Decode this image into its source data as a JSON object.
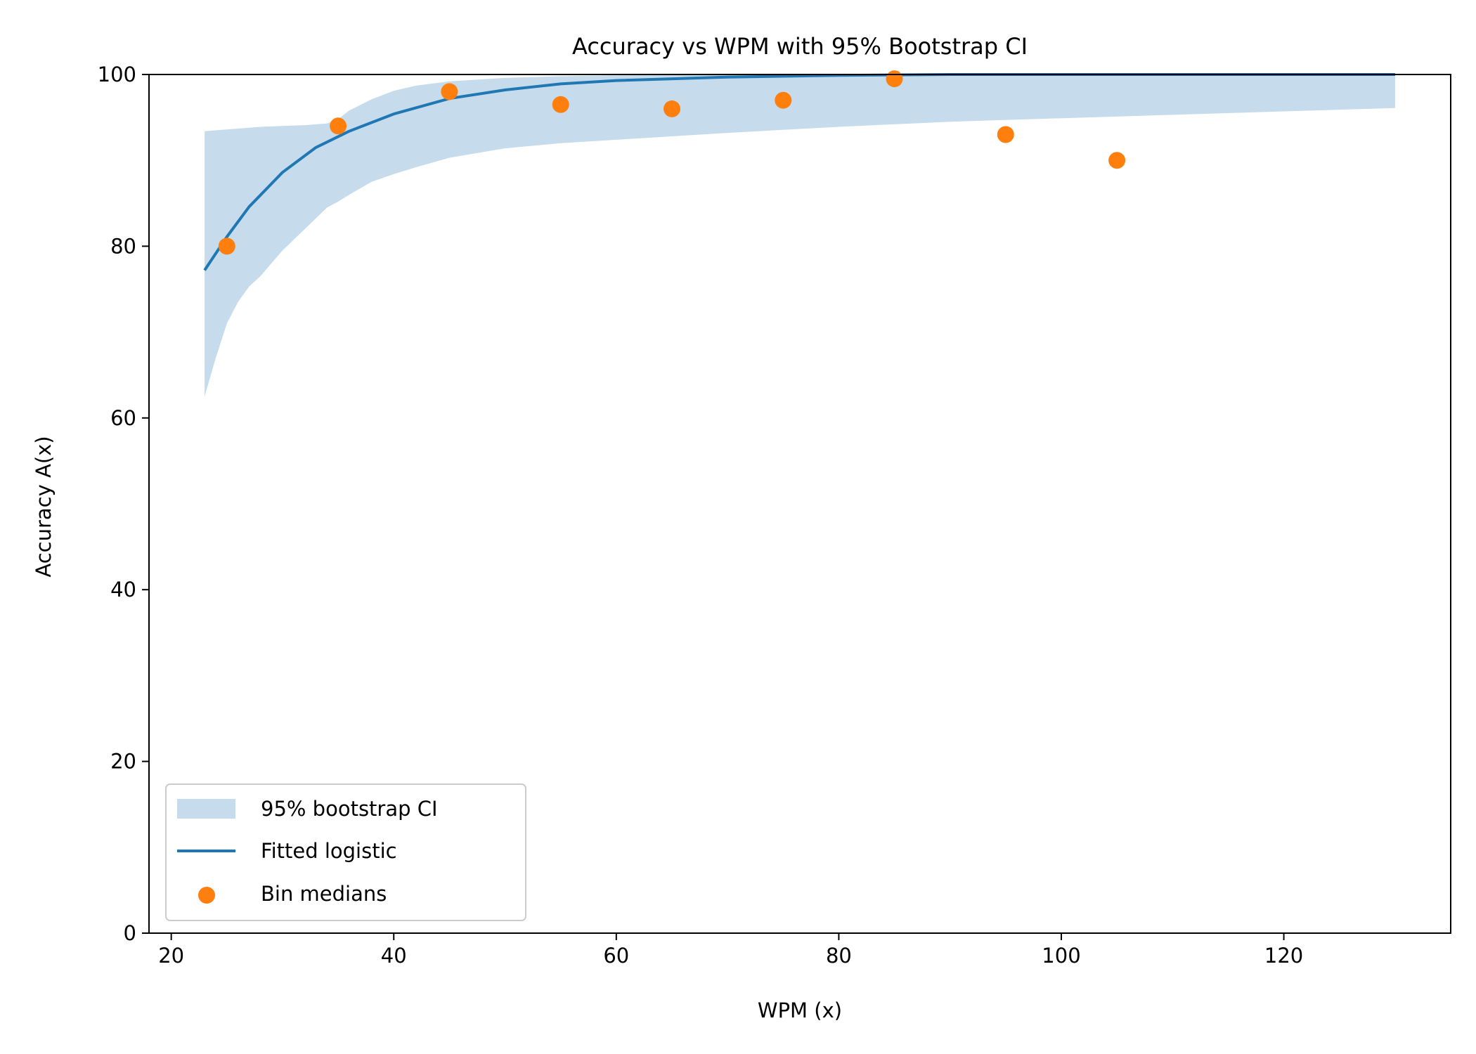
{
  "chart_data": {
    "type": "line",
    "title": "Accuracy vs WPM with 95% Bootstrap CI",
    "xlabel": "WPM (x)",
    "ylabel": "Accuracy A(x)",
    "xlim": [
      18,
      135
    ],
    "ylim": [
      0,
      100
    ],
    "x_ticks": [
      20,
      40,
      60,
      80,
      100,
      120
    ],
    "y_ticks": [
      0,
      20,
      40,
      60,
      80,
      100
    ],
    "grid": false,
    "legend_position": "lower-left",
    "colors": {
      "ci_band": "#c6dbeb",
      "fit_line": "#1f77b4",
      "points": "#ff7f0e"
    },
    "series": [
      {
        "name": "95% bootstrap CI",
        "kind": "band",
        "x": [
          23,
          24,
          25,
          26,
          27,
          28,
          30,
          32,
          34,
          35,
          36,
          38,
          40,
          42,
          45,
          50,
          55,
          60,
          70,
          80,
          90,
          100,
          110,
          120,
          130
        ],
        "lower": [
          62.5,
          67,
          71,
          73.5,
          75.3,
          76.5,
          79.5,
          82,
          84.5,
          85.2,
          86,
          87.5,
          88.4,
          89.2,
          90.3,
          91.4,
          92,
          92.4,
          93.2,
          93.9,
          94.5,
          94.9,
          95.3,
          95.7,
          96.1
        ],
        "upper": [
          93.4,
          93.5,
          93.6,
          93.7,
          93.8,
          93.9,
          94,
          94.1,
          94.3,
          94.8,
          95.8,
          97.1,
          98.1,
          98.7,
          99.2,
          99.6,
          99.8,
          99.9,
          100,
          100,
          100,
          100,
          100,
          100,
          100
        ]
      },
      {
        "name": "Fitted logistic",
        "kind": "line",
        "x": [
          23,
          25,
          27,
          30,
          33,
          36,
          40,
          45,
          50,
          55,
          60,
          70,
          80,
          90,
          100,
          110,
          120,
          130
        ],
        "y": [
          77.2,
          81.1,
          84.6,
          88.6,
          91.5,
          93.4,
          95.4,
          97.2,
          98.2,
          98.9,
          99.3,
          99.7,
          99.9,
          100,
          100,
          100,
          100,
          100
        ]
      },
      {
        "name": "Bin medians",
        "kind": "scatter",
        "x": [
          25,
          35,
          45,
          55,
          65,
          75,
          85,
          95,
          105
        ],
        "y": [
          80,
          94,
          98,
          96.5,
          96,
          97,
          99.5,
          93,
          90
        ]
      }
    ]
  }
}
